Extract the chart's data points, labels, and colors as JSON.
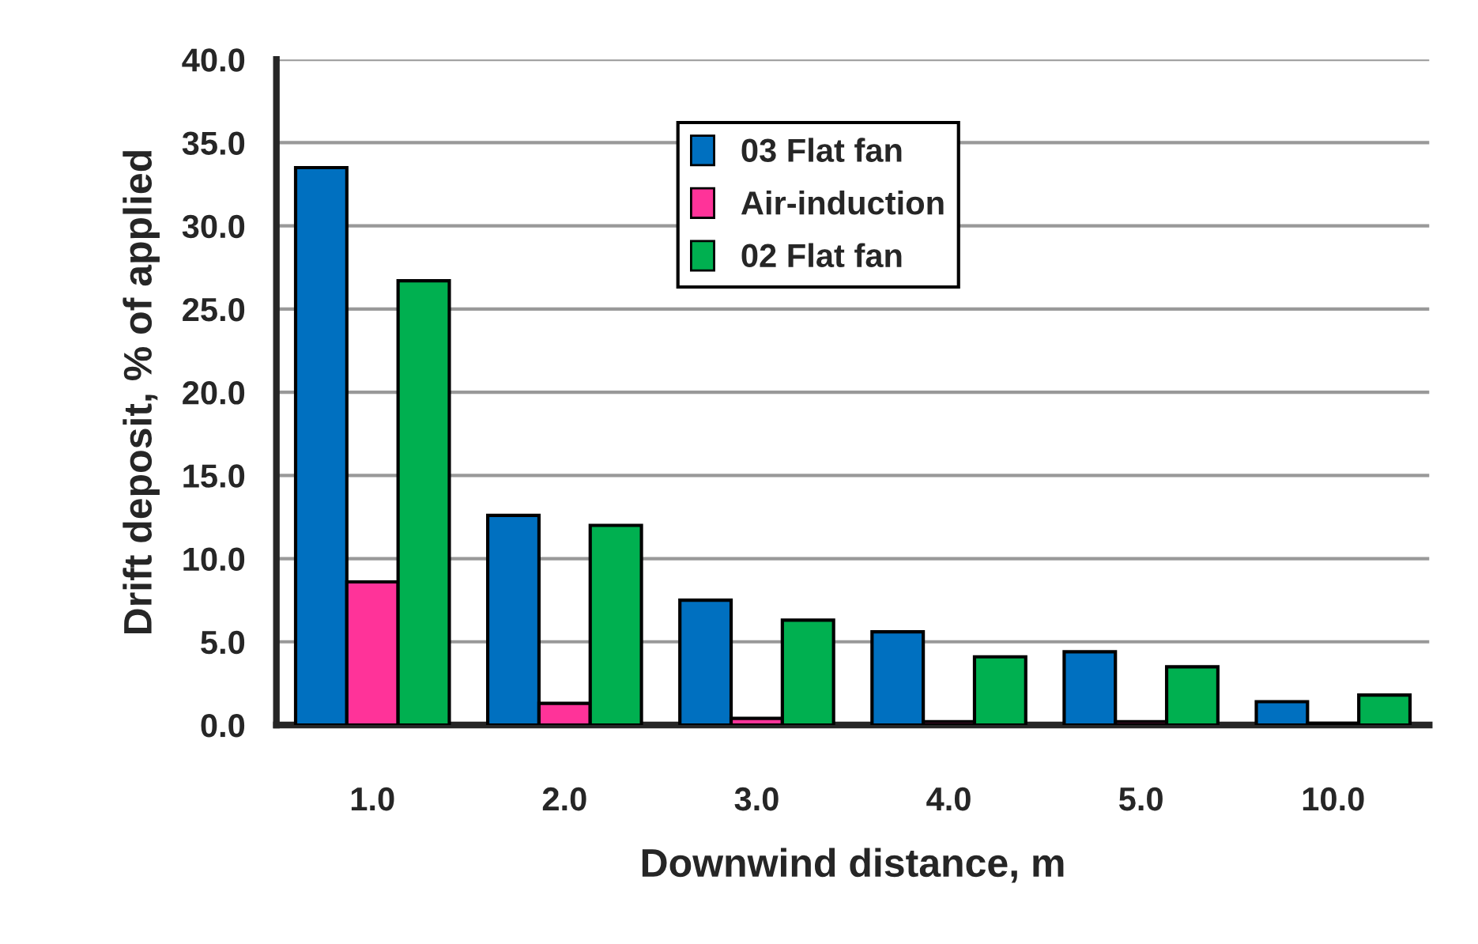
{
  "chart_data": {
    "type": "bar",
    "xlabel": "Downwind distance, m",
    "ylabel": "Drift deposit, % of applied",
    "categories": [
      "1.0",
      "2.0",
      "3.0",
      "4.0",
      "5.0",
      "10.0"
    ],
    "series": [
      {
        "name": "03 Flat fan",
        "color": "#0070c0",
        "values": [
          33.5,
          12.6,
          7.5,
          5.6,
          4.4,
          1.4
        ]
      },
      {
        "name": "Air-induction",
        "color": "#ff3399",
        "values": [
          8.6,
          1.3,
          0.4,
          0.2,
          0.2,
          0.1
        ]
      },
      {
        "name": "02 Flat fan",
        "color": "#00b050",
        "values": [
          26.7,
          12.0,
          6.3,
          4.1,
          3.5,
          1.8
        ]
      }
    ],
    "ylim": [
      0,
      40
    ],
    "yticks": [
      {
        "value": 0,
        "label": "0.0"
      },
      {
        "value": 5,
        "label": "5.0"
      },
      {
        "value": 10,
        "label": "10.0"
      },
      {
        "value": 15,
        "label": "15.0"
      },
      {
        "value": 20,
        "label": "20.0"
      },
      {
        "value": 25,
        "label": "25.0"
      },
      {
        "value": 30,
        "label": "30.0"
      },
      {
        "value": 35,
        "label": "35.0"
      },
      {
        "value": 40,
        "label": "40.0"
      }
    ],
    "grid": "y",
    "legend": "top"
  }
}
